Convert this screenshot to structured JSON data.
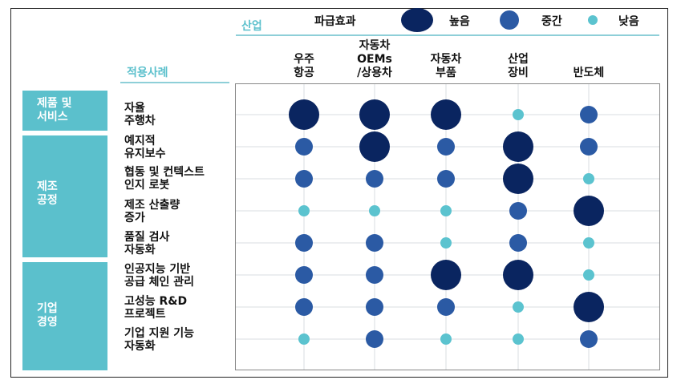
{
  "header": {
    "industry_label": "산업",
    "case_label": "적용사례",
    "legend_title": "파급효과",
    "legend": [
      {
        "label": "높음",
        "color": "#0a2560",
        "level": "high"
      },
      {
        "label": "중간",
        "color": "#2b5aa4",
        "level": "medium"
      },
      {
        "label": "낮음",
        "color": "#5bc3cf",
        "level": "low"
      }
    ]
  },
  "categories": [
    {
      "label": "제품 및\n서비스"
    },
    {
      "label": "제조\n공정"
    },
    {
      "label": "기업\n경영"
    }
  ],
  "chart_data": {
    "type": "bubble-matrix",
    "columns": [
      "우주\n항공",
      "자동차\nOEMs\n/상용차",
      "자동차\n부품",
      "산업\n장비",
      "반도체"
    ],
    "rows": [
      {
        "label": "자율\n주행차",
        "category": "제품 및 서비스",
        "values": [
          "high",
          "high",
          "high",
          "low",
          "medium"
        ]
      },
      {
        "label": "예지적\n유지보수",
        "category": "제조 공정",
        "values": [
          "medium",
          "high",
          "medium",
          "high",
          "medium"
        ]
      },
      {
        "label": "협동 및 컨텍스트\n인지 로봇",
        "category": "제조 공정",
        "values": [
          "medium",
          "medium",
          "medium",
          "high",
          "low"
        ]
      },
      {
        "label": "제조 산출량\n증가",
        "category": "제조 공정",
        "values": [
          "low",
          "low",
          "low",
          "medium",
          "high"
        ]
      },
      {
        "label": "품질 검사\n자동화",
        "category": "제조 공정",
        "values": [
          "medium",
          "medium",
          "low",
          "medium",
          "low"
        ]
      },
      {
        "label": "인공지능 기반\n공급 체인 관리",
        "category": "기업 경영",
        "values": [
          "medium",
          "medium",
          "high",
          "high",
          "low"
        ]
      },
      {
        "label": "고성능 R&D\n프로젝트",
        "category": "기업 경영",
        "values": [
          "medium",
          "medium",
          "medium",
          "low",
          "high"
        ]
      },
      {
        "label": "기업 지원 기능\n자동화",
        "category": "기업 경영",
        "values": [
          "low",
          "medium",
          "low",
          "low",
          "medium"
        ]
      }
    ],
    "levels": {
      "high": {
        "color": "#0a2560"
      },
      "medium": {
        "color": "#2b5aa4"
      },
      "low": {
        "color": "#5bc3cf"
      }
    }
  }
}
